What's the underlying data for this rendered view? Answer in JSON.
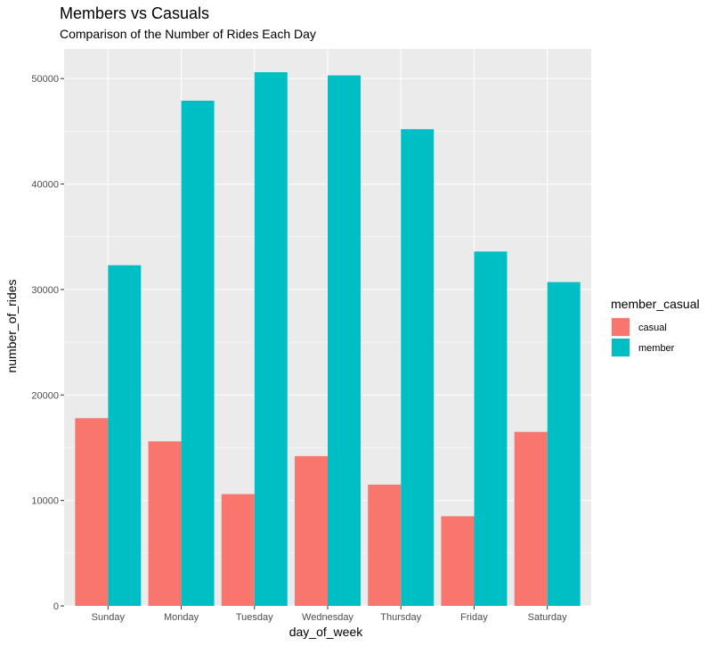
{
  "chart_data": {
    "type": "bar",
    "title": "Members vs Casuals",
    "subtitle": "Comparison of the Number of Rides Each Day",
    "xlabel": "day_of_week",
    "ylabel": "number_of_rides",
    "categories": [
      "Sunday",
      "Monday",
      "Tuesday",
      "Wednesday",
      "Thursday",
      "Friday",
      "Saturday"
    ],
    "series": [
      {
        "name": "casual",
        "color": "#F8766D",
        "values": [
          17800,
          15600,
          10600,
          14200,
          11500,
          8500,
          16500
        ]
      },
      {
        "name": "member",
        "color": "#00BFC4",
        "values": [
          32300,
          47900,
          50600,
          50300,
          45200,
          33600,
          30700
        ]
      }
    ],
    "ylim": [
      0,
      52800
    ],
    "yticks": [
      0,
      10000,
      20000,
      30000,
      40000,
      50000
    ],
    "ytick_labels": [
      "0",
      "10000",
      "20000",
      "30000",
      "40000",
      "50000"
    ],
    "legend": {
      "title": "member_casual",
      "position": "right"
    },
    "grid": true,
    "panel_color": "#EBEBEB",
    "grid_color": "#FFFFFF"
  }
}
